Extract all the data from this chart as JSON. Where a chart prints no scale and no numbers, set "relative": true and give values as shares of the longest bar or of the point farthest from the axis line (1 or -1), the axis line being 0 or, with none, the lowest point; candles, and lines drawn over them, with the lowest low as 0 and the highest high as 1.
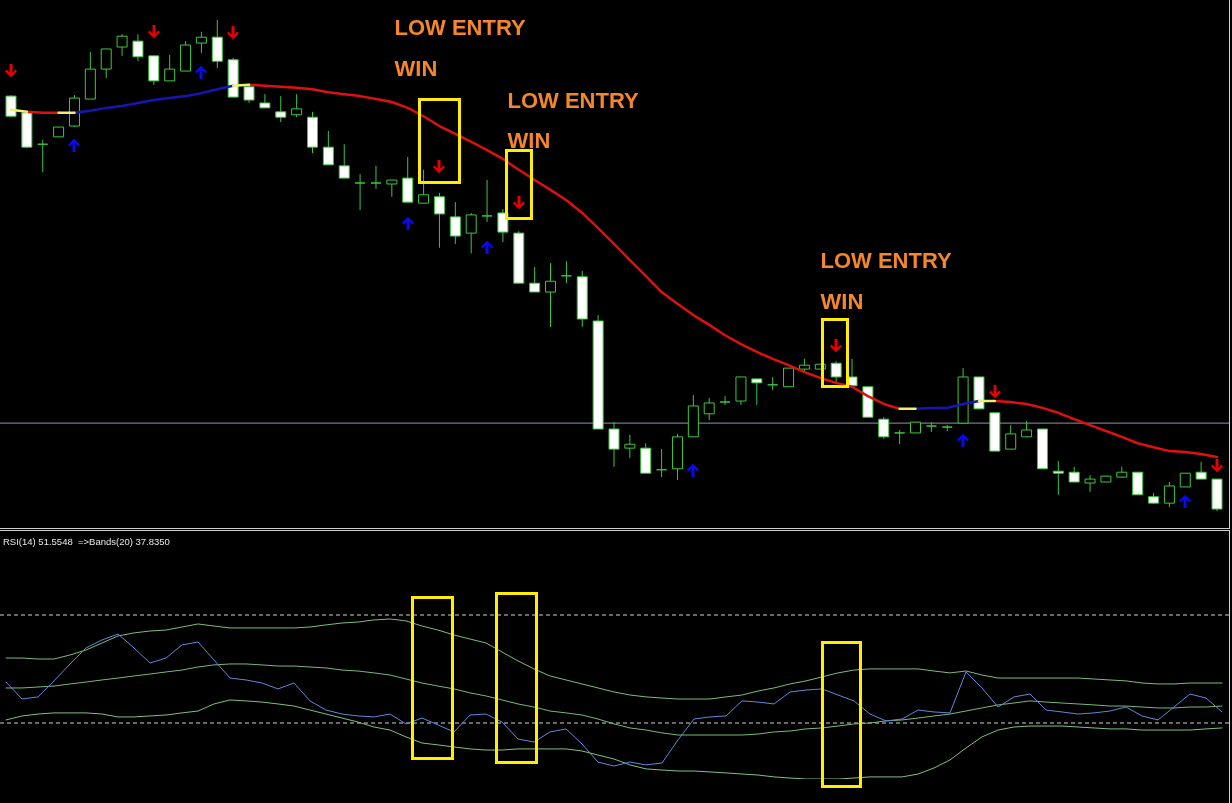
{
  "chart_data": [
    {
      "type": "candlestick",
      "relative": true,
      "categories": [
        null,
        null,
        null,
        null,
        null,
        null,
        null,
        null,
        null,
        null,
        null,
        null,
        null,
        null,
        null,
        null,
        null,
        null,
        null,
        null,
        null,
        null,
        null,
        null,
        null,
        null,
        null,
        null,
        null,
        null,
        null,
        null,
        null,
        null,
        null,
        null,
        null,
        null,
        null,
        null,
        null,
        null,
        null,
        null,
        null,
        null,
        null,
        null,
        null,
        null,
        null,
        null,
        null,
        null,
        null,
        null,
        null,
        null,
        null,
        null,
        null,
        null,
        null,
        null,
        null,
        null,
        null,
        null,
        null,
        null,
        null,
        null,
        null,
        null,
        null,
        null,
        null
      ],
      "ohlc": [
        [
          0.845,
          0.847,
          0.802,
          0.804
        ],
        [
          0.811,
          0.813,
          0.739,
          0.741
        ],
        [
          0.747,
          0.756,
          0.69,
          0.747
        ],
        [
          0.762,
          0.782,
          0.762,
          0.782
        ],
        [
          0.784,
          0.847,
          0.782,
          0.841
        ],
        [
          0.839,
          0.935,
          0.839,
          0.9
        ],
        [
          0.9,
          0.941,
          0.882,
          0.941
        ],
        [
          0.945,
          0.971,
          0.927,
          0.967
        ],
        [
          0.957,
          0.971,
          0.916,
          0.925
        ],
        [
          0.927,
          0.927,
          0.868,
          0.876
        ],
        [
          0.876,
          0.929,
          0.876,
          0.9
        ],
        [
          0.896,
          0.957,
          0.896,
          0.949
        ],
        [
          0.953,
          0.976,
          0.933,
          0.965
        ],
        [
          0.965,
          1,
          0.902,
          0.916
        ],
        [
          0.919,
          0.923,
          0.843,
          0.843
        ],
        [
          0.864,
          0.866,
          0.831,
          0.837
        ],
        [
          0.831,
          0.849,
          0.821,
          0.821
        ],
        [
          0.813,
          0.845,
          0.792,
          0.802
        ],
        [
          0.807,
          0.849,
          0.802,
          0.819
        ],
        [
          0.802,
          0.813,
          0.729,
          0.741
        ],
        [
          0.741,
          0.774,
          0.705,
          0.705
        ],
        [
          0.703,
          0.747,
          0.678,
          0.678
        ],
        [
          0.668,
          0.686,
          0.613,
          0.668
        ],
        [
          0.668,
          0.703,
          0.656,
          0.668
        ],
        [
          0.666,
          0.674,
          0.64,
          0.674
        ],
        [
          0.678,
          0.721,
          0.629,
          0.629
        ],
        [
          0.627,
          0.695,
          0.627,
          0.644
        ],
        [
          0.64,
          0.648,
          0.536,
          0.605
        ],
        [
          0.599,
          0.629,
          0.544,
          0.56
        ],
        [
          0.566,
          0.607,
          0.525,
          0.603
        ],
        [
          0.601,
          0.674,
          0.589,
          0.601
        ],
        [
          0.607,
          0.615,
          0.548,
          0.568
        ],
        [
          0.566,
          0.57,
          0.464,
          0.464
        ],
        [
          0.464,
          0.497,
          0.446,
          0.446
        ],
        [
          0.446,
          0.505,
          0.375,
          0.468
        ],
        [
          0.479,
          0.509,
          0.464,
          0.479
        ],
        [
          0.477,
          0.489,
          0.375,
          0.391
        ],
        [
          0.387,
          0.399,
          0.167,
          0.167
        ],
        [
          0.167,
          0.181,
          0.09,
          0.126
        ],
        [
          0.128,
          0.155,
          0.108,
          0.136
        ],
        [
          0.128,
          0.138,
          0.077,
          0.077
        ],
        [
          0.084,
          0.126,
          0.069,
          0.084
        ],
        [
          0.086,
          0.157,
          0.063,
          0.151
        ],
        [
          0.151,
          0.236,
          0.151,
          0.214
        ],
        [
          0.198,
          0.23,
          0.185,
          0.22
        ],
        [
          0.222,
          0.234,
          0.216,
          0.222
        ],
        [
          0.224,
          0.273,
          0.216,
          0.273
        ],
        [
          0.269,
          0.269,
          0.216,
          0.261
        ],
        [
          0.257,
          0.273,
          0.246,
          0.257
        ],
        [
          0.253,
          0.291,
          0.253,
          0.291
        ],
        [
          0.289,
          0.31,
          0.281,
          0.297
        ],
        [
          0.289,
          0.299,
          0.289,
          0.299
        ],
        [
          0.301,
          0.305,
          0.261,
          0.273
        ],
        [
          0.273,
          0.31,
          0.255,
          0.255
        ],
        [
          0.253,
          0.253,
          0.191,
          0.191
        ],
        [
          0.187,
          0.191,
          0.147,
          0.151
        ],
        [
          0.159,
          0.165,
          0.136,
          0.159
        ],
        [
          0.159,
          0.181,
          0.159,
          0.181
        ],
        [
          0.173,
          0.181,
          0.161,
          0.173
        ],
        [
          0.171,
          0.175,
          0.163,
          0.171
        ],
        [
          0.179,
          0.291,
          0.179,
          0.273
        ],
        [
          0.273,
          0.273,
          0.208,
          0.208
        ],
        [
          0.2,
          0.2,
          0.122,
          0.122
        ],
        [
          0.126,
          0.175,
          0.126,
          0.157
        ],
        [
          0.151,
          0.183,
          0.151,
          0.165
        ],
        [
          0.167,
          0.167,
          0.086,
          0.086
        ],
        [
          0.081,
          0.102,
          0.033,
          0.077
        ],
        [
          0.079,
          0.09,
          0.059,
          0.059
        ],
        [
          0.057,
          0.073,
          0.039,
          0.065
        ],
        [
          0.059,
          0.071,
          0.059,
          0.071
        ],
        [
          0.069,
          0.09,
          0.067,
          0.079
        ],
        [
          0.079,
          0.079,
          0.033,
          0.033
        ],
        [
          0.029,
          0.037,
          0.014,
          0.016
        ],
        [
          0.016,
          0.059,
          0.008,
          0.051
        ],
        [
          0.049,
          0.077,
          0.049,
          0.077
        ],
        [
          0.079,
          0.1,
          0.065,
          0.065
        ],
        [
          0.065,
          0.065,
          0,
          0.004
        ]
      ],
      "color": "#3cc83c",
      "colors": [
        "#ffffff",
        "#ffffff",
        "#3cc83c",
        "#000000",
        "#000000",
        "#000000",
        "#000000",
        "#000000",
        "#ffffff",
        "#ffffff",
        "#000000",
        "#000000",
        "#000000",
        "#ffffff",
        "#ffffff",
        "#ffffff",
        "#ffffff",
        "#ffffff",
        "#000000",
        "#ffffff",
        "#ffffff",
        "#ffffff",
        "#3cc83c",
        "#3cc83c",
        "#000000",
        "#ffffff",
        "#000000",
        "#ffffff",
        "#ffffff",
        "#000000",
        "#3cc83c",
        "#ffffff",
        "#ffffff",
        "#ffffff",
        "#000000",
        "#3cc83c",
        "#ffffff",
        "#ffffff",
        "#ffffff",
        "#000000",
        "#ffffff",
        "#3cc83c",
        "#000000",
        "#000000",
        "#000000",
        "#3cc83c",
        "#000000",
        "#ffffff",
        "#3cc83c",
        "#000000",
        "#000000",
        "#000000",
        "#ffffff",
        "#ffffff",
        "#ffffff",
        "#ffffff",
        "#3cc83c",
        "#000000",
        "#3cc83c",
        "#3cc83c",
        "#000000",
        "#ffffff",
        "#ffffff",
        "#000000",
        "#000000",
        "#ffffff",
        "#ffffff",
        "#ffffff",
        "#000000",
        "#000000",
        "#000000",
        "#ffffff",
        "#ffffff",
        "#000000",
        "#000000",
        "#ffffff",
        "#ffffff"
      ],
      "series": [
        {
          "type": "line",
          "color": "#dd1111",
          "values": [
            null,
            0.813,
            0.811,
            0.811,
            null,
            null,
            null,
            null,
            null,
            null,
            null,
            null,
            null,
            null,
            null,
            0.868,
            0.866,
            0.864,
            0.862,
            0.859,
            0.853,
            0.849,
            0.845,
            0.839,
            0.833,
            0.821,
            0.804,
            0.784,
            0.768,
            0.752,
            0.735,
            0.717,
            0.695,
            0.674,
            0.654,
            0.633,
            0.607,
            0.576,
            0.544,
            0.511,
            0.479,
            0.446,
            0.422,
            0.399,
            0.379,
            0.358,
            0.34,
            0.324,
            0.31,
            0.297,
            0.283,
            0.271,
            0.261,
            0.253,
            0.234,
            0.218,
            0.208,
            null,
            null,
            null,
            null,
            null,
            0.224,
            0.222,
            0.218,
            0.21,
            0.2,
            0.187,
            0.175,
            0.163,
            0.151,
            0.138,
            0.13,
            0.122,
            0.12,
            0.116,
            0.11
          ]
        },
        {
          "type": "line",
          "color": "#1616b4",
          "values": [
            null,
            null,
            null,
            null,
            0.811,
            0.815,
            0.821,
            0.825,
            0.831,
            0.837,
            0.841,
            0.845,
            0.851,
            0.859,
            0.866,
            null,
            null,
            null,
            null,
            null,
            null,
            null,
            null,
            null,
            null,
            null,
            null,
            null,
            null,
            null,
            null,
            null,
            null,
            null,
            null,
            null,
            null,
            null,
            null,
            null,
            null,
            null,
            null,
            null,
            null,
            null,
            null,
            null,
            null,
            null,
            null,
            null,
            null,
            null,
            null,
            null,
            null,
            0.208,
            0.21,
            0.21,
            0.218,
            0.224,
            null,
            null,
            null,
            null,
            null,
            null,
            null,
            null,
            null,
            null,
            null,
            null,
            null,
            null,
            null
          ]
        },
        {
          "type": "line",
          "color": "#f2ee6e",
          "values": [
            0.817,
            0.813,
            null,
            0.811,
            0.811,
            null,
            null,
            null,
            null,
            null,
            null,
            null,
            null,
            null,
            0.866,
            0.868,
            null,
            null,
            null,
            null,
            null,
            null,
            null,
            null,
            null,
            null,
            null,
            null,
            null,
            null,
            null,
            null,
            null,
            null,
            null,
            null,
            null,
            null,
            null,
            null,
            null,
            null,
            null,
            null,
            null,
            null,
            null,
            null,
            null,
            null,
            null,
            null,
            null,
            null,
            null,
            null,
            0.208,
            0.208,
            null,
            null,
            null,
            0.224,
            0.224,
            null,
            null,
            null,
            null,
            null,
            null,
            null,
            null,
            null,
            null,
            null,
            null,
            null,
            null
          ]
        }
      ],
      "ref_lines": [
        {
          "axis": "y",
          "value": 0.179,
          "color": "#8b98a8"
        }
      ],
      "annotations": [
        "LOW ENTRY",
        "WIN",
        "LOW ENTRY",
        "WIN",
        "LOW ENTRY",
        "WIN"
      ]
    },
    {
      "type": "line",
      "relative": true,
      "title": "RSI(14) 51.5548  =>Bands(20) 37.8350",
      "categories": [
        null,
        null,
        null,
        null,
        null,
        null,
        null,
        null,
        null,
        null,
        null,
        null,
        null,
        null,
        null,
        null,
        null,
        null,
        null,
        null,
        null,
        null,
        null,
        null,
        null,
        null,
        null,
        null,
        null,
        null,
        null,
        null,
        null,
        null,
        null,
        null,
        null,
        null,
        null,
        null,
        null,
        null,
        null,
        null,
        null,
        null,
        null,
        null,
        null,
        null,
        null,
        null,
        null,
        null,
        null,
        null,
        null,
        null,
        null,
        null,
        null,
        null,
        null,
        null,
        null,
        null,
        null,
        null,
        null,
        null,
        null,
        null,
        null,
        null,
        null,
        null,
        null
      ],
      "series": [
        {
          "type": "line",
          "color": "#7cbc7c",
          "values": [
            0.756,
            0.756,
            0.75,
            0.75,
            0.775,
            0.806,
            0.85,
            0.894,
            0.913,
            0.925,
            0.931,
            0.95,
            0.969,
            0.956,
            0.944,
            0.944,
            0.944,
            0.944,
            0.944,
            0.95,
            0.963,
            0.975,
            0.981,
            0.994,
            1,
            0.988,
            0.956,
            0.931,
            0.9,
            0.875,
            0.85,
            0.794,
            0.738,
            0.688,
            0.644,
            0.619,
            0.594,
            0.569,
            0.544,
            0.525,
            0.513,
            0.506,
            0.5,
            0.5,
            0.5,
            0.513,
            0.525,
            0.55,
            0.569,
            0.594,
            0.613,
            0.638,
            0.663,
            0.681,
            0.688,
            0.688,
            0.688,
            0.688,
            0.675,
            0.663,
            0.675,
            0.65,
            0.631,
            0.631,
            0.631,
            0.631,
            0.631,
            0.631,
            0.625,
            0.619,
            0.613,
            0.6,
            0.594,
            0.594,
            0.6,
            0.6,
            0.6
          ]
        },
        {
          "type": "line",
          "color": "#78b87c",
          "values": [
            0.569,
            0.569,
            0.575,
            0.581,
            0.594,
            0.606,
            0.619,
            0.631,
            0.644,
            0.656,
            0.669,
            0.681,
            0.7,
            0.713,
            0.719,
            0.719,
            0.713,
            0.706,
            0.706,
            0.7,
            0.694,
            0.681,
            0.675,
            0.663,
            0.65,
            0.625,
            0.6,
            0.581,
            0.563,
            0.538,
            0.519,
            0.494,
            0.469,
            0.45,
            0.425,
            0.413,
            0.4,
            0.375,
            0.344,
            0.319,
            0.306,
            0.288,
            0.275,
            0.275,
            0.275,
            0.275,
            0.275,
            0.281,
            0.294,
            0.3,
            0.313,
            0.319,
            0.331,
            0.344,
            0.35,
            0.363,
            0.369,
            0.381,
            0.394,
            0.406,
            0.425,
            0.444,
            0.463,
            0.475,
            0.488,
            0.481,
            0.475,
            0.469,
            0.463,
            0.456,
            0.456,
            0.45,
            0.444,
            0.444,
            0.45,
            0.45,
            0.456
          ]
        },
        {
          "type": "line",
          "color": "#80c080",
          "values": [
            0.369,
            0.394,
            0.406,
            0.413,
            0.413,
            0.413,
            0.406,
            0.388,
            0.388,
            0.394,
            0.4,
            0.413,
            0.425,
            0.469,
            0.494,
            0.488,
            0.481,
            0.469,
            0.456,
            0.431,
            0.406,
            0.381,
            0.356,
            0.325,
            0.306,
            0.263,
            0.225,
            0.213,
            0.2,
            0.188,
            0.181,
            0.181,
            0.188,
            0.188,
            0.188,
            0.188,
            0.175,
            0.15,
            0.125,
            0.088,
            0.063,
            0.056,
            0.05,
            0.05,
            0.044,
            0.038,
            0.031,
            0.025,
            0.013,
            0.006,
            0,
            0,
            0,
            0.006,
            0.013,
            0.013,
            0.013,
            0.031,
            0.069,
            0.119,
            0.194,
            0.263,
            0.306,
            0.325,
            0.331,
            0.331,
            0.331,
            0.325,
            0.319,
            0.313,
            0.313,
            0.306,
            0.306,
            0.306,
            0.306,
            0.313,
            0.319
          ]
        },
        {
          "type": "line",
          "color": "#6088dd",
          "values": [
            0.606,
            0.5,
            0.513,
            0.613,
            0.719,
            0.819,
            0.869,
            0.906,
            0.819,
            0.725,
            0.756,
            0.838,
            0.856,
            0.744,
            0.631,
            0.619,
            0.6,
            0.563,
            0.6,
            0.488,
            0.431,
            0.406,
            0.394,
            0.388,
            0.406,
            0.344,
            0.381,
            0.338,
            0.294,
            0.4,
            0.406,
            0.356,
            0.25,
            0.231,
            0.294,
            0.313,
            0.219,
            0.106,
            0.081,
            0.106,
            0.088,
            0.1,
            0.244,
            0.375,
            0.388,
            0.394,
            0.488,
            0.481,
            0.469,
            0.544,
            0.556,
            0.563,
            0.525,
            0.488,
            0.406,
            0.363,
            0.375,
            0.431,
            0.419,
            0.413,
            0.669,
            0.569,
            0.45,
            0.513,
            0.531,
            0.431,
            0.419,
            0.406,
            0.413,
            0.425,
            0.45,
            0.394,
            0.369,
            0.45,
            0.531,
            0.506,
            0.419
          ]
        }
      ],
      "ref_lines": [
        {
          "axis": "y",
          "value": 1.025,
          "color": "#d0d0d0",
          "line_style": "dashed"
        },
        {
          "axis": "y",
          "value": 0.35,
          "color": "#d0d0d0",
          "line_style": "dashed"
        }
      ]
    }
  ]
}
